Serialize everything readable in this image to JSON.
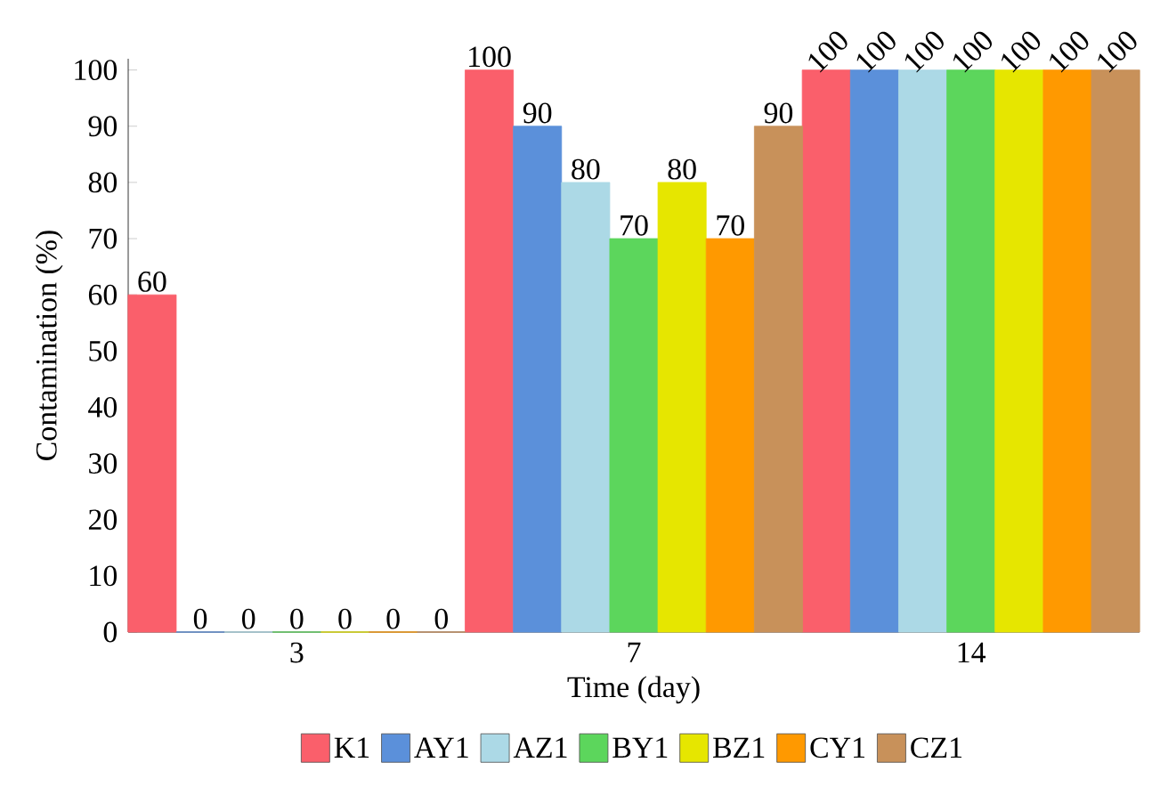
{
  "chart_data": {
    "type": "bar",
    "xlabel": "Time (day)",
    "ylabel": "Contamination (%)",
    "categories": [
      "3",
      "7",
      "14"
    ],
    "series": [
      {
        "name": "K1",
        "color": "#fa5f6b",
        "values": [
          60,
          100,
          100
        ]
      },
      {
        "name": "AY1",
        "color": "#5b90da",
        "values": [
          0,
          90,
          100
        ]
      },
      {
        "name": "AZ1",
        "color": "#acd9e6",
        "values": [
          0,
          80,
          100
        ]
      },
      {
        "name": "BY1",
        "color": "#5cd65c",
        "values": [
          0,
          70,
          100
        ]
      },
      {
        "name": "BZ1",
        "color": "#e6e600",
        "values": [
          0,
          80,
          100
        ]
      },
      {
        "name": "CY1",
        "color": "#ff9900",
        "values": [
          0,
          70,
          100
        ]
      },
      {
        "name": "CZ1",
        "color": "#c8915a",
        "values": [
          0,
          90,
          100
        ]
      }
    ],
    "ylim": [
      0,
      102
    ],
    "yticks": [
      0,
      10,
      20,
      30,
      40,
      50,
      60,
      70,
      80,
      90,
      100
    ],
    "data_labels": true,
    "legend": "bottom"
  }
}
